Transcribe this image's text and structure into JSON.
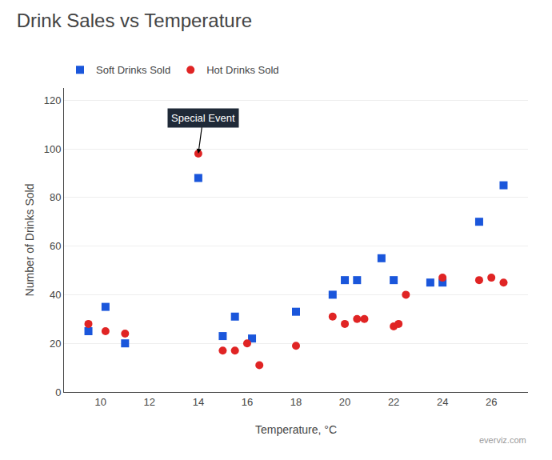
{
  "chart_data": {
    "type": "scatter",
    "title": "Drink Sales vs Temperature",
    "x_label": "Temperature, °C",
    "y_label": "Number of Drinks Sold",
    "series": [
      {
        "name": "Soft Drinks Sold",
        "color": "#1a56db",
        "marker": "square",
        "x": [
          9.5,
          10.2,
          11.0,
          14.0,
          15.0,
          15.5,
          16.2,
          18.0,
          19.5,
          20.0,
          20.5,
          21.5,
          22.0,
          23.5,
          24.0,
          25.5,
          26.5
        ],
        "values": [
          25,
          35,
          20,
          88,
          23,
          31,
          22,
          33,
          40,
          46,
          46,
          55,
          46,
          45,
          45,
          70,
          85
        ]
      },
      {
        "name": "Hot Drinks Sold",
        "color": "#e02424",
        "marker": "circle",
        "x": [
          9.5,
          10.2,
          11.0,
          14.0,
          15.0,
          15.5,
          16.0,
          16.5,
          18.0,
          19.5,
          20.0,
          20.5,
          20.8,
          22.0,
          22.2,
          22.5,
          24.0,
          25.5,
          26.0,
          26.5
        ],
        "values": [
          28,
          25,
          24,
          98,
          17,
          17,
          20,
          11,
          19,
          31,
          28,
          30,
          30,
          27,
          28,
          40,
          47,
          46,
          47,
          45
        ]
      }
    ],
    "annotations": [
      {
        "text": "Special Event",
        "x": 14.0,
        "y": 98
      },
      {
        "text": "everviz.com"
      }
    ],
    "xlim": [
      8.5,
      27.5
    ],
    "ylim": [
      0,
      125
    ],
    "xticks": [
      10,
      12,
      14,
      16,
      18,
      20,
      22,
      24,
      26
    ],
    "yticks": [
      0,
      20,
      40,
      60,
      80,
      100,
      120
    ],
    "grid": "y",
    "legend": "top left"
  }
}
